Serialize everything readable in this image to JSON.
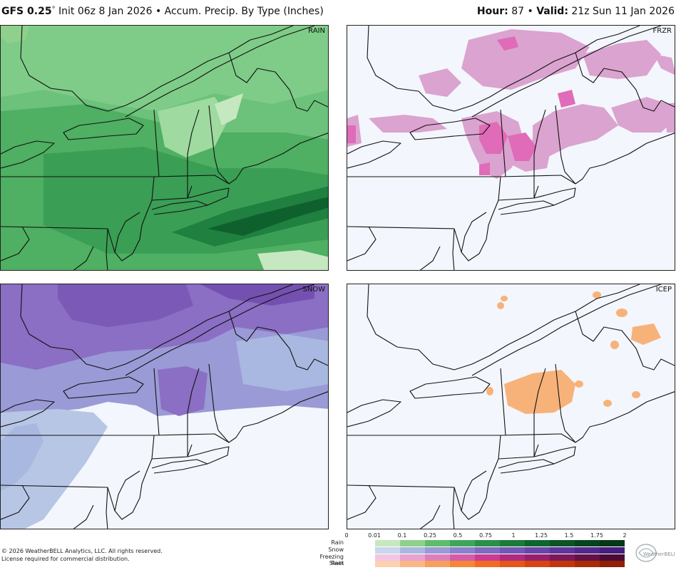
{
  "header": {
    "model": "GFS 0.25",
    "degree": "°",
    "init": "Init 06z 8 Jan 2026",
    "bullet": "•",
    "product": "Accum. Precip. By Type (Inches)",
    "hour_label": "Hour:",
    "hour_value": "87",
    "valid_label": "Valid:",
    "valid_value": "21z Sun 11 Jan 2026"
  },
  "panels": {
    "rain": "RAIN",
    "frzr": "FRZR",
    "snow": "SNOW",
    "icep": "ICEP"
  },
  "footer": {
    "copyright": "© 2026 WeatherBELL Analytics, LLC. All rights reserved.",
    "license": "License required for commercial distribution."
  },
  "legend": {
    "ticks": [
      "0",
      "0.01",
      "0.1",
      "0.25",
      "0.5",
      "0.75",
      "1",
      "1.25",
      "1.5",
      "1.75",
      "2"
    ],
    "rows": [
      {
        "label": "Rain",
        "colors": [
          "#c6e8c0",
          "#8fd08c",
          "#5fbd6a",
          "#3fa659",
          "#2a8f48",
          "#1c7a3a",
          "#0f652e",
          "#0a5426",
          "#06441e",
          "#043817"
        ]
      },
      {
        "label": "Snow",
        "colors": [
          "#c9d6ec",
          "#a9b8e0",
          "#9a9ad6",
          "#8b82cc",
          "#7d6bc0",
          "#7357b4",
          "#6a45a8",
          "#5e359a",
          "#52288c",
          "#461e7e"
        ]
      },
      {
        "label": "Freezing Rain",
        "colors": [
          "#f2c6e2",
          "#e8a2cf",
          "#de7fbc",
          "#d45ca9",
          "#c93b95",
          "#b02a80",
          "#96206c",
          "#7c1859",
          "#631146",
          "#4c0b36"
        ]
      },
      {
        "label": "Sleet",
        "colors": [
          "#fbd1b0",
          "#f9b785",
          "#f79f5c",
          "#f4863a",
          "#f06c22",
          "#e4561a",
          "#d44512",
          "#c0360c",
          "#a82a08",
          "#8f1f05"
        ]
      }
    ],
    "logo_text": "WeatherBELL"
  }
}
